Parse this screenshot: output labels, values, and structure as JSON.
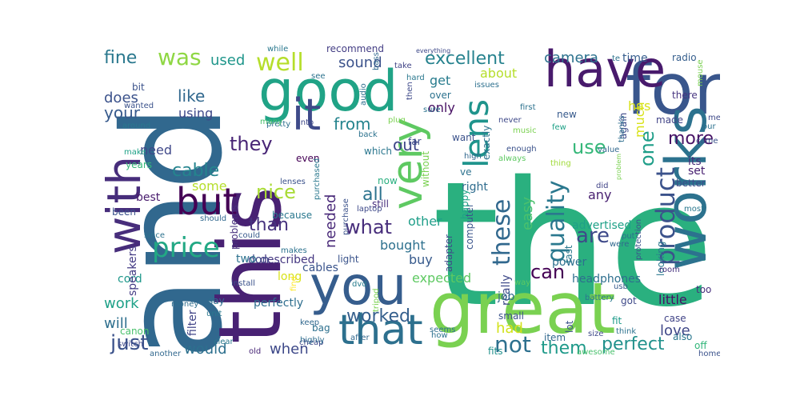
{
  "colors": {
    "background": "#ffffff",
    "palette": [
      "#440154",
      "#46337e",
      "#365c8d",
      "#277f8e",
      "#1fa187",
      "#4ac16d",
      "#a0da39",
      "#fde725"
    ]
  },
  "words": [
    {
      "text": "the",
      "color": "#2ab07f"
    },
    {
      "text": "and",
      "color": "#31688e"
    },
    {
      "text": "great",
      "color": "#7ad151"
    },
    {
      "text": "for",
      "color": "#39568c"
    },
    {
      "text": "this",
      "color": "#482173"
    },
    {
      "text": "good",
      "color": "#20a386"
    },
    {
      "text": "works",
      "color": "#2c728e"
    },
    {
      "text": "have",
      "color": "#481a6c"
    },
    {
      "text": "with",
      "color": "#472d7b"
    },
    {
      "text": "you",
      "color": "#365d8d"
    },
    {
      "text": "that",
      "color": "#2d708e"
    },
    {
      "text": "but",
      "color": "#440154"
    },
    {
      "text": "it",
      "color": "#3e4a89"
    },
    {
      "text": "very",
      "color": "#5ec962"
    },
    {
      "text": "lens",
      "color": "#1f948c"
    },
    {
      "text": "well",
      "color": "#b5de2b"
    },
    {
      "text": "quality",
      "color": "#2a788e"
    },
    {
      "text": "product",
      "color": "#3b528b"
    },
    {
      "text": "price",
      "color": "#22a884"
    },
    {
      "text": "they",
      "color": "#482576"
    },
    {
      "text": "these",
      "color": "#31688e"
    },
    {
      "text": "was",
      "color": "#8fd744"
    },
    {
      "text": "excellent",
      "color": "#26828e"
    },
    {
      "text": "camera",
      "color": "#2c728e"
    },
    {
      "text": "use",
      "color": "#35b779"
    },
    {
      "text": "one",
      "color": "#1f9e89"
    },
    {
      "text": "not",
      "color": "#2d708e"
    },
    {
      "text": "just",
      "color": "#3b528b"
    },
    {
      "text": "what",
      "color": "#472d7b"
    },
    {
      "text": "are",
      "color": "#3e4989"
    },
    {
      "text": "nice",
      "color": "#a8db34"
    },
    {
      "text": "perfect",
      "color": "#21918c"
    },
    {
      "text": "can",
      "color": "#440154"
    },
    {
      "text": "worked",
      "color": "#355f8d"
    },
    {
      "text": "them",
      "color": "#1f9a8a"
    },
    {
      "text": "cable",
      "color": "#25848e"
    },
    {
      "text": "fine",
      "color": "#2a788e"
    },
    {
      "text": "sound",
      "color": "#3b528b"
    },
    {
      "text": "from",
      "color": "#25848e"
    },
    {
      "text": "out",
      "color": "#3f4788"
    },
    {
      "text": "all",
      "color": "#2c738e"
    },
    {
      "text": "more",
      "color": "#481467"
    },
    {
      "text": "like",
      "color": "#31688e"
    },
    {
      "text": "your",
      "color": "#375a8c"
    },
    {
      "text": "than",
      "color": "#46327e"
    },
    {
      "text": "when",
      "color": "#3e4989"
    },
    {
      "text": "would",
      "color": "#2d708e"
    },
    {
      "text": "love",
      "color": "#3f4788"
    },
    {
      "text": "easy",
      "color": "#4ac16d"
    },
    {
      "text": "work",
      "color": "#1fa188"
    },
    {
      "text": "will",
      "color": "#2e6f8e"
    },
    {
      "text": "had",
      "color": "#d2e21b"
    },
    {
      "text": "get",
      "color": "#287c8e"
    },
    {
      "text": "does",
      "color": "#3b528b"
    },
    {
      "text": "used",
      "color": "#1f968b"
    },
    {
      "text": "needed",
      "color": "#482878"
    },
    {
      "text": "expected",
      "color": "#5ec962"
    },
    {
      "text": "much",
      "color": "#d8e219"
    },
    {
      "text": "has",
      "color": "#d8e219"
    },
    {
      "text": "bought",
      "color": "#2d708e"
    },
    {
      "text": "buy",
      "color": "#375a8c"
    },
    {
      "text": "using",
      "color": "#3e4989"
    },
    {
      "text": "about",
      "color": "#b5de2b"
    },
    {
      "text": "only",
      "color": "#471063"
    },
    {
      "text": "time",
      "color": "#365d8d"
    },
    {
      "text": "little",
      "color": "#471164"
    },
    {
      "text": "need",
      "color": "#3f4889"
    },
    {
      "text": "some",
      "color": "#b5de2b"
    },
    {
      "text": "other",
      "color": "#1f9e89"
    },
    {
      "text": "any",
      "color": "#481f70"
    },
    {
      "text": "set",
      "color": "#482071"
    },
    {
      "text": "its",
      "color": "#472c7a"
    },
    {
      "text": "really",
      "color": "#3e4989"
    },
    {
      "text": "job",
      "color": "#31688e"
    },
    {
      "text": "fits",
      "color": "#21918c"
    },
    {
      "text": "advertised",
      "color": "#1fa188"
    },
    {
      "text": "headphones",
      "color": "#2e6f8e"
    },
    {
      "text": "power",
      "color": "#2d708e"
    },
    {
      "text": "perfectly",
      "color": "#2e6e8e"
    },
    {
      "text": "filter",
      "color": "#414487"
    },
    {
      "text": "described",
      "color": "#453781"
    },
    {
      "text": "don",
      "color": "#3f4788"
    },
    {
      "text": "cord",
      "color": "#1f988b"
    },
    {
      "text": "speakers",
      "color": "#443b84"
    },
    {
      "text": "cables",
      "color": "#3a548c"
    },
    {
      "text": "because",
      "color": "#2a788e"
    },
    {
      "text": "right",
      "color": "#2f6c8e"
    },
    {
      "text": "best",
      "color": "#481b6d"
    },
    {
      "text": "two",
      "color": "#2c718e"
    },
    {
      "text": "long",
      "color": "#d8e219"
    },
    {
      "text": "radio",
      "color": "#355e8d"
    },
    {
      "text": "there",
      "color": "#463480"
    },
    {
      "text": "made",
      "color": "#414487"
    },
    {
      "text": "better",
      "color": "#3d4d8a"
    },
    {
      "text": "too",
      "color": "#472f7d"
    },
    {
      "text": "also",
      "color": "#2a778e"
    },
    {
      "text": "off",
      "color": "#32b67a"
    },
    {
      "text": "got",
      "color": "#3e4989"
    },
    {
      "text": "years",
      "color": "#35b779"
    },
    {
      "text": "been",
      "color": "#3b528b"
    },
    {
      "text": "recommend",
      "color": "#433d84"
    },
    {
      "text": "over",
      "color": "#2c728e"
    },
    {
      "text": "again",
      "color": "#3e4989"
    },
    {
      "text": "new",
      "color": "#375a8c"
    },
    {
      "text": "want",
      "color": "#3b528b"
    },
    {
      "text": "far",
      "color": "#3e4c8a"
    },
    {
      "text": "which",
      "color": "#2a768e"
    },
    {
      "text": "now",
      "color": "#29af7f"
    },
    {
      "text": "still",
      "color": "#472e7c"
    },
    {
      "text": "item",
      "color": "#31688e"
    },
    {
      "text": "small",
      "color": "#3b528b"
    },
    {
      "text": "say",
      "color": "#2e6e8e"
    },
    {
      "text": "canon",
      "color": "#4ac16d"
    },
    {
      "text": "bag",
      "color": "#2d708e"
    },
    {
      "text": "fit",
      "color": "#1e9b8a"
    },
    {
      "text": "case",
      "color": "#414487"
    },
    {
      "text": "bit",
      "color": "#3b528b"
    },
    {
      "text": "even",
      "color": "#440154"
    },
    {
      "text": "light",
      "color": "#3a538b"
    },
    {
      "text": "exactly",
      "color": "#2c728e"
    },
    {
      "text": "ve",
      "color": "#2c728e"
    },
    {
      "text": "computer",
      "color": "#3a548c"
    },
    {
      "text": "without",
      "color": "#7ad151"
    },
    {
      "text": "happy",
      "color": "#1fa187"
    },
    {
      "text": "adapter",
      "color": "#3e4a89"
    },
    {
      "text": "lot",
      "color": "#3b528b"
    },
    {
      "text": "problems",
      "color": "#472f7d"
    },
    {
      "text": "makes",
      "color": "#2c728e"
    },
    {
      "text": "looking",
      "color": "#2a788e"
    },
    {
      "text": "fast",
      "color": "#2a788e"
    },
    {
      "text": "room",
      "color": "#46307e"
    },
    {
      "text": "protection",
      "color": "#3b528b"
    },
    {
      "text": "usb",
      "color": "#375a8c"
    },
    {
      "text": "dvd",
      "color": "#287d8e"
    },
    {
      "text": "clear",
      "color": "#2a788e"
    },
    {
      "text": "cheap",
      "color": "#3e4989"
    },
    {
      "text": "old",
      "color": "#482677"
    },
    {
      "text": "highly",
      "color": "#2e6e8e"
    },
    {
      "text": "keep",
      "color": "#31688e"
    },
    {
      "text": "unit",
      "color": "#2a788e"
    },
    {
      "text": "another",
      "color": "#31688e"
    },
    {
      "text": "switch",
      "color": "#3e4989"
    },
    {
      "text": "could",
      "color": "#375a8c"
    },
    {
      "text": "install",
      "color": "#3b528b"
    },
    {
      "text": "money",
      "color": "#2e6e8e"
    },
    {
      "text": "should",
      "color": "#31688e"
    },
    {
      "text": "since",
      "color": "#2c728e"
    },
    {
      "text": "make",
      "color": "#1fa187"
    },
    {
      "text": "around",
      "color": "#2a788e"
    },
    {
      "text": "wanted",
      "color": "#3b528b"
    },
    {
      "text": "pretty",
      "color": "#2d708e"
    },
    {
      "text": "many",
      "color": "#4ac16d"
    },
    {
      "text": "while",
      "color": "#2a788e"
    },
    {
      "text": "everything",
      "color": "#3e4989"
    },
    {
      "text": "take",
      "color": "#414487"
    },
    {
      "text": "hard",
      "color": "#2a788e"
    },
    {
      "text": "then",
      "color": "#3e4989"
    },
    {
      "text": "sure",
      "color": "#2c728e"
    },
    {
      "text": "plug",
      "color": "#7ad151"
    },
    {
      "text": "audio",
      "color": "#2e6e8e"
    },
    {
      "text": "into",
      "color": "#3e4989"
    },
    {
      "text": "back",
      "color": "#2c728e"
    },
    {
      "text": "issues",
      "color": "#2d708e"
    },
    {
      "text": "first",
      "color": "#2c728e"
    },
    {
      "text": "few",
      "color": "#1fa187"
    },
    {
      "text": "never",
      "color": "#3e4989"
    },
    {
      "text": "music",
      "color": "#7ad151"
    },
    {
      "text": "high",
      "color": "#31688e"
    },
    {
      "text": "enough",
      "color": "#3b528b"
    },
    {
      "text": "always",
      "color": "#5ec962"
    },
    {
      "text": "thing",
      "color": "#a0da39"
    },
    {
      "text": "value",
      "color": "#31688e"
    },
    {
      "text": "thanks",
      "color": "#2e6e8e"
    },
    {
      "text": "came",
      "color": "#3b528b"
    },
    {
      "text": "mouse",
      "color": "#7ad151"
    },
    {
      "text": "our",
      "color": "#2c728e"
    },
    {
      "text": "me",
      "color": "#3e4989"
    },
    {
      "text": "most",
      "color": "#2a788e"
    },
    {
      "text": "did",
      "color": "#414487"
    },
    {
      "text": "put",
      "color": "#2d708e"
    },
    {
      "text": "were",
      "color": "#31688e"
    },
    {
      "text": "see",
      "color": "#2c728e"
    },
    {
      "text": "purchase",
      "color": "#3b528b"
    },
    {
      "text": "purchased",
      "color": "#2a788e"
    },
    {
      "text": "laptop",
      "color": "#3e4989"
    },
    {
      "text": "bass",
      "color": "#31688e"
    },
    {
      "text": "lenses",
      "color": "#3b528b"
    },
    {
      "text": "find",
      "color": "#fde725"
    },
    {
      "text": "tripod",
      "color": "#7ad151"
    },
    {
      "text": "after",
      "color": "#31688e"
    },
    {
      "text": "how",
      "color": "#2c728e"
    },
    {
      "text": "seems",
      "color": "#2e6e8e"
    },
    {
      "text": "way",
      "color": "#5ec962"
    },
    {
      "text": "battery",
      "color": "#2a788e"
    },
    {
      "text": "size",
      "color": "#3e4989"
    },
    {
      "text": "think",
      "color": "#2c728e"
    },
    {
      "text": "awesome",
      "color": "#4ac16d"
    },
    {
      "text": "home",
      "color": "#3b528b"
    },
    {
      "text": "problem",
      "color": "#7ad151"
    },
    {
      "text": "te",
      "color": "#2c728e"
    }
  ]
}
